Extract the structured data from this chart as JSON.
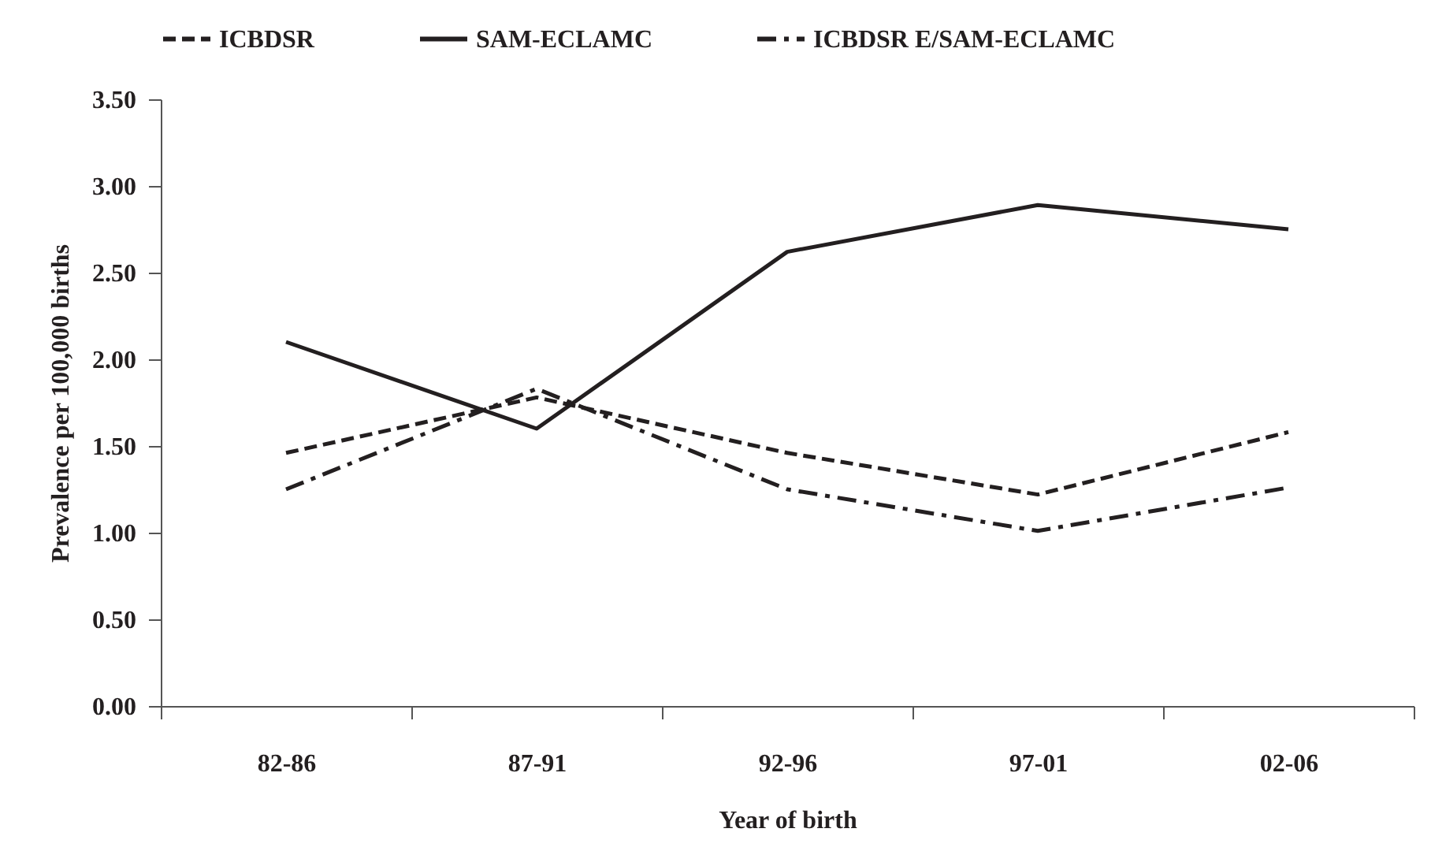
{
  "chart_data": {
    "type": "line",
    "xlabel": "Year of birth",
    "ylabel": "Prevalence  per 100,000 births",
    "categories": [
      "82-86",
      "87-91",
      "92-96",
      "97-01",
      "02-06"
    ],
    "series": [
      {
        "name": "ICBDSR",
        "color": "#231f20",
        "line_style": "dashed",
        "values": [
          1.46,
          1.78,
          1.46,
          1.22,
          1.58
        ]
      },
      {
        "name": "SAM-ECLAMC",
        "color": "#231f20",
        "line_style": "solid",
        "values": [
          2.1,
          1.6,
          2.62,
          2.89,
          2.75
        ]
      },
      {
        "name": "ICBDSR E/SAM-ECLAMC",
        "color": "#231f20",
        "line_style": "dashdot",
        "values": [
          1.25,
          1.83,
          1.25,
          1.01,
          1.26
        ]
      }
    ],
    "ylim": [
      0,
      3.5
    ],
    "yticks": [
      {
        "value": 0,
        "label": "0.00"
      },
      {
        "value": 0.5,
        "label": "0.50"
      },
      {
        "value": 1,
        "label": "1.00"
      },
      {
        "value": 1.5,
        "label": "1.50"
      },
      {
        "value": 2,
        "label": "2.00"
      },
      {
        "value": 2.5,
        "label": "2.50"
      },
      {
        "value": 3,
        "label": "3.00"
      },
      {
        "value": 3.5,
        "label": "3.50"
      }
    ],
    "grid": false,
    "legend": "top",
    "marker": "none"
  }
}
